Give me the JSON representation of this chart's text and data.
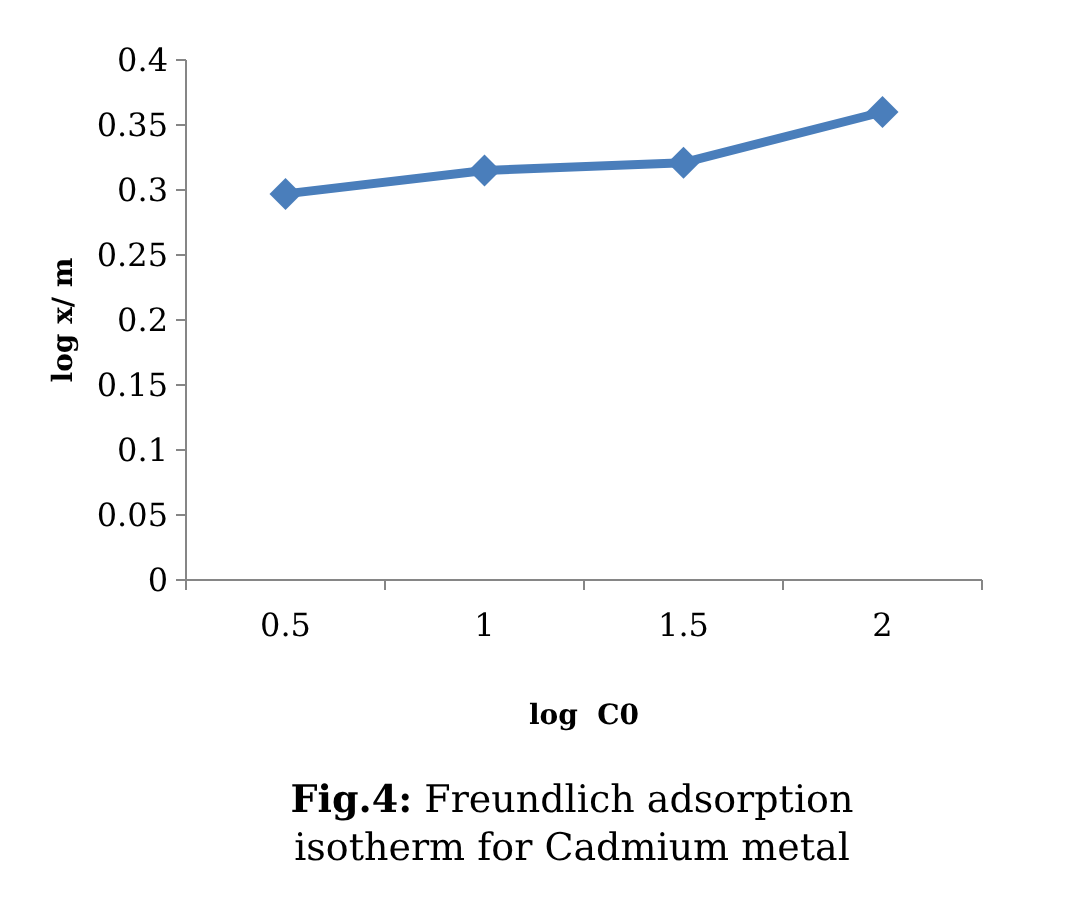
{
  "chart_data": {
    "type": "line",
    "title": "Fig.4: Freundlich adsorption isotherm for Cadmium metal",
    "xlabel": "log  C0",
    "ylabel": "log x/ m",
    "categories": [
      "0.5",
      "1",
      "1.5",
      "2"
    ],
    "series": [
      {
        "color": "#4a7ebb",
        "values": [
          0.297,
          0.315,
          0.321,
          0.36
        ]
      }
    ],
    "ylim": [
      0,
      0.4
    ],
    "yticks": [
      0,
      0.05,
      0.1,
      0.15,
      0.2,
      0.25,
      0.3,
      0.35,
      0.4
    ],
    "marker": "diamond",
    "line_style": "solid",
    "grid": false
  }
}
